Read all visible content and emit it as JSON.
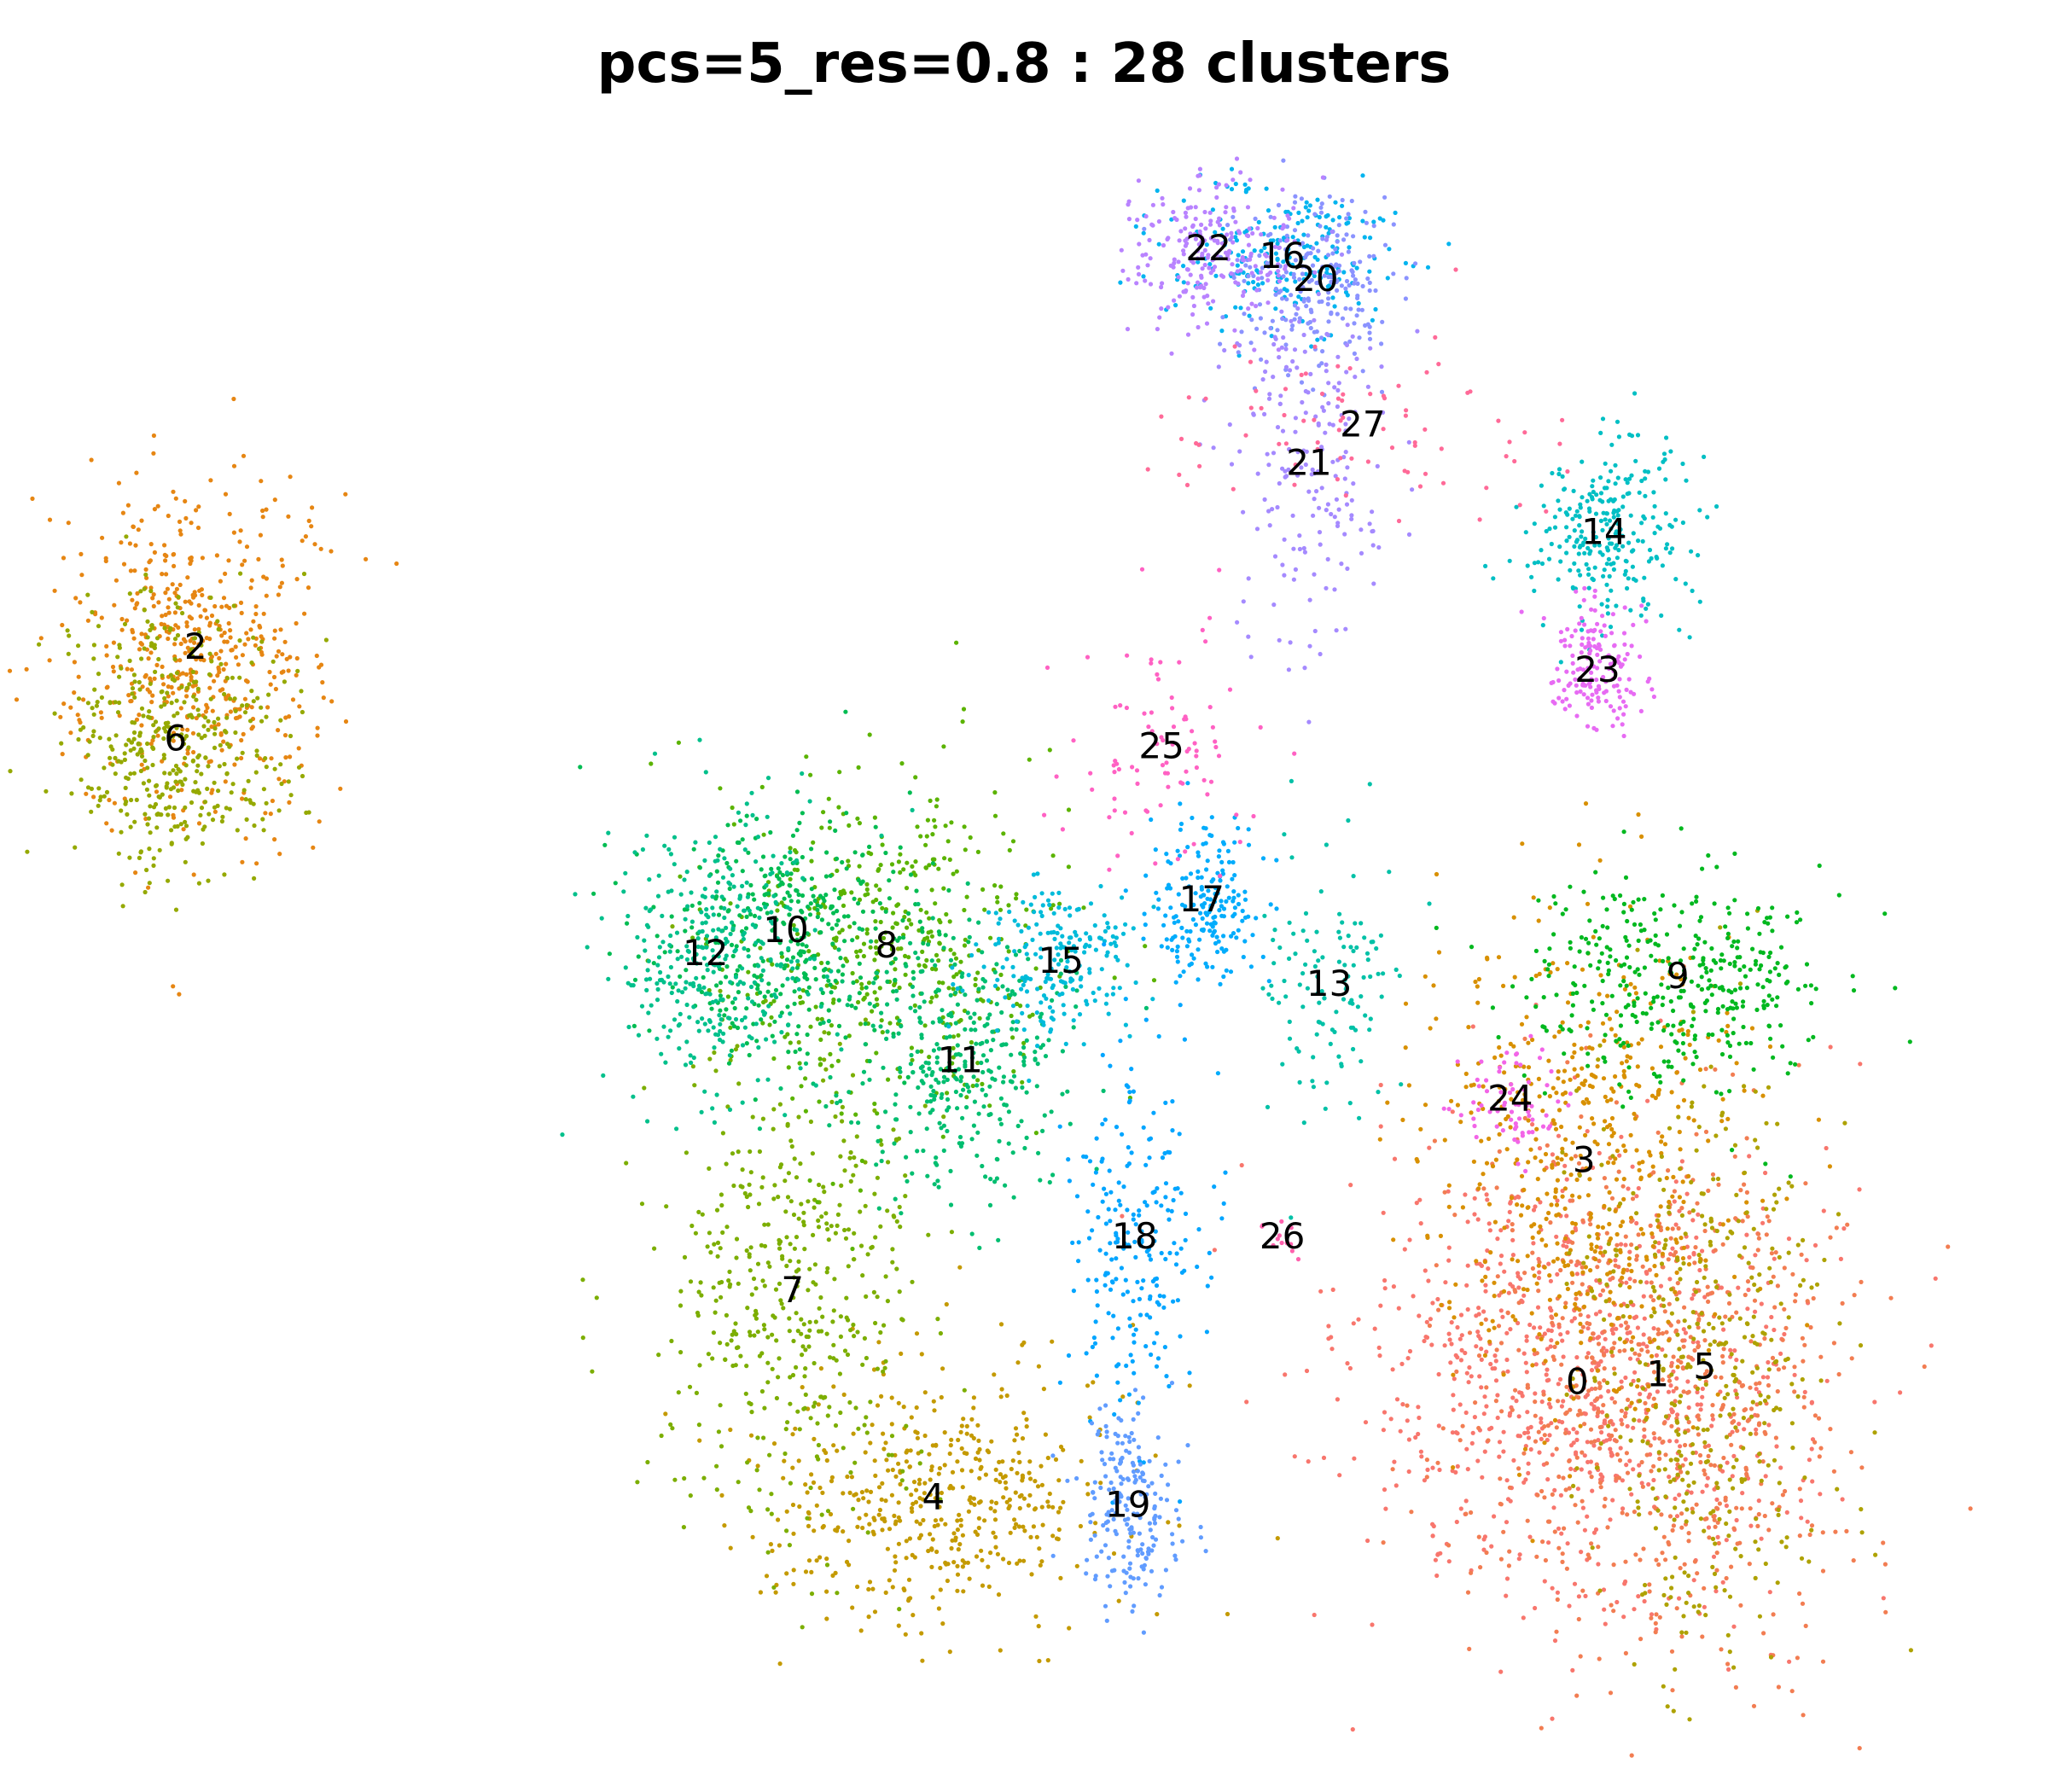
{
  "chart_data": {
    "type": "scatter",
    "title": "pcs=5_res=0.8 : 28 clusters",
    "xlabel": "",
    "ylabel": "",
    "axes_visible": false,
    "grid": false,
    "legend": "none",
    "clusters": [
      {
        "label": "0",
        "color": "#F8766D",
        "x": 6.0,
        "y": -4.4
      },
      {
        "label": "1",
        "color": "#F27D52",
        "x": 7.2,
        "y": -4.3
      },
      {
        "label": "2",
        "color": "#E68613",
        "x": -14.6,
        "y": 5.2
      },
      {
        "label": "3",
        "color": "#D89000",
        "x": 6.1,
        "y": -1.5
      },
      {
        "label": "4",
        "color": "#C49A00",
        "x": -3.6,
        "y": -5.9
      },
      {
        "label": "5",
        "color": "#AEA200",
        "x": 7.9,
        "y": -4.2
      },
      {
        "label": "6",
        "color": "#95A900",
        "x": -14.9,
        "y": 4.0
      },
      {
        "label": "7",
        "color": "#7CAE00",
        "x": -5.7,
        "y": -3.2
      },
      {
        "label": "8",
        "color": "#5BB300",
        "x": -4.3,
        "y": 1.3
      },
      {
        "label": "9",
        "color": "#00B81F",
        "x": 7.5,
        "y": 0.9
      },
      {
        "label": "10",
        "color": "#00BC52",
        "x": -5.8,
        "y": 1.5
      },
      {
        "label": "11",
        "color": "#00BE70",
        "x": -3.2,
        "y": -0.2
      },
      {
        "label": "12",
        "color": "#00C08B",
        "x": -7.0,
        "y": 1.2
      },
      {
        "label": "13",
        "color": "#00C1A7",
        "x": 2.3,
        "y": 0.8
      },
      {
        "label": "14",
        "color": "#00BFC4",
        "x": 6.4,
        "y": 6.7
      },
      {
        "label": "15",
        "color": "#00BBDA",
        "x": -1.7,
        "y": 1.1
      },
      {
        "label": "16",
        "color": "#00B4EF",
        "x": 1.6,
        "y": 10.3
      },
      {
        "label": "17",
        "color": "#00ACFC",
        "x": 0.4,
        "y": 1.9
      },
      {
        "label": "18",
        "color": "#00A5FF",
        "x": -0.6,
        "y": -2.5
      },
      {
        "label": "19",
        "color": "#619CFF",
        "x": -0.7,
        "y": -6.0
      },
      {
        "label": "20",
        "color": "#8B93FF",
        "x": 2.1,
        "y": 10.0
      },
      {
        "label": "21",
        "color": "#A58AFF",
        "x": 2.0,
        "y": 7.6
      },
      {
        "label": "22",
        "color": "#B983FF",
        "x": 0.5,
        "y": 10.4
      },
      {
        "label": "23",
        "color": "#E76BF3",
        "x": 6.3,
        "y": 4.9
      },
      {
        "label": "24",
        "color": "#F265E7",
        "x": 5.0,
        "y": -0.7
      },
      {
        "label": "25",
        "color": "#FF61C3",
        "x": -0.2,
        "y": 3.9
      },
      {
        "label": "26",
        "color": "#FF61AD",
        "x": 1.6,
        "y": -2.5
      },
      {
        "label": "27",
        "color": "#FF6A98",
        "x": 2.8,
        "y": 8.1
      }
    ]
  }
}
